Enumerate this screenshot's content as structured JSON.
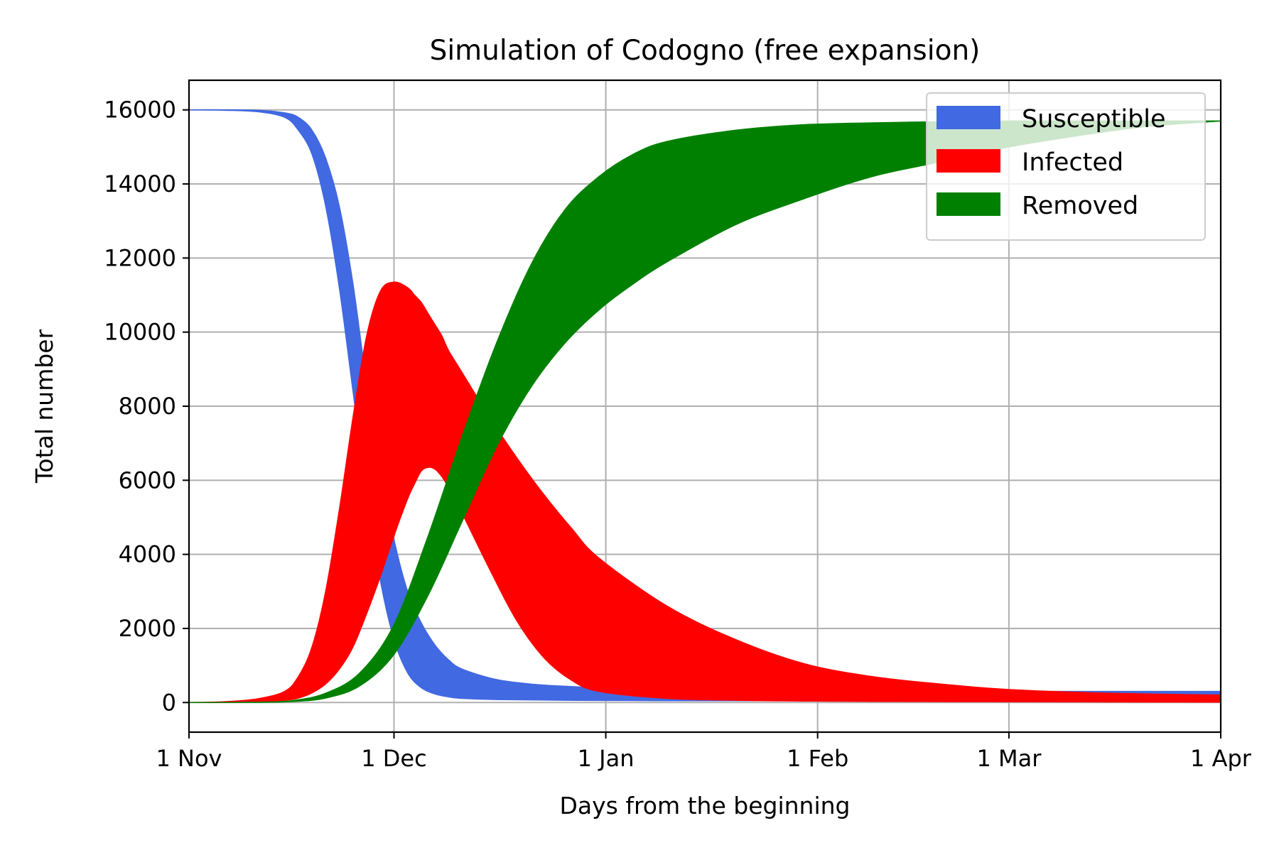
{
  "chart_data": {
    "type": "area",
    "title": "Simulation of Codogno (free expansion)",
    "xlabel": "Days from the beginning",
    "ylabel": "Total number",
    "x_ticks": [
      {
        "day": 0,
        "label": "1 Nov"
      },
      {
        "day": 30,
        "label": "1 Dec"
      },
      {
        "day": 61,
        "label": "1 Jan"
      },
      {
        "day": 92,
        "label": "1 Feb"
      },
      {
        "day": 120,
        "label": "1 Mar"
      },
      {
        "day": 151,
        "label": "1 Apr"
      }
    ],
    "y_ticks": [
      0,
      2000,
      4000,
      6000,
      8000,
      10000,
      12000,
      14000,
      16000
    ],
    "xlim": [
      0,
      151
    ],
    "ylim": [
      -800,
      16800
    ],
    "grid": true,
    "legend_position": "top-right",
    "series": [
      {
        "name": "Susceptible",
        "color": "#4169e1",
        "x": [
          0,
          5,
          10,
          14,
          16,
          18,
          20,
          22,
          24,
          26,
          28,
          30,
          32,
          34,
          36,
          38,
          40,
          45,
          50,
          55,
          60,
          70,
          80,
          90,
          100,
          120,
          151
        ],
        "upper": [
          16000,
          16000,
          15990,
          15920,
          15800,
          15450,
          14700,
          13400,
          11300,
          8600,
          6300,
          4400,
          3000,
          2150,
          1550,
          1150,
          900,
          620,
          500,
          440,
          400,
          360,
          340,
          320,
          310,
          300,
          300
        ],
        "lower": [
          16000,
          15990,
          15950,
          15800,
          15450,
          14800,
          13400,
          11200,
          8400,
          5600,
          3300,
          1700,
          800,
          400,
          230,
          150,
          110,
          80,
          70,
          60,
          55,
          50,
          50,
          50,
          50,
          50,
          50
        ]
      },
      {
        "name": "Infected",
        "color": "#ff0000",
        "x": [
          0,
          5,
          10,
          14,
          16,
          18,
          20,
          22,
          24,
          26,
          28,
          30,
          32,
          33,
          34,
          35,
          36,
          37,
          38,
          40,
          44,
          48,
          52,
          56,
          60,
          70,
          80,
          90,
          100,
          110,
          120,
          135,
          151
        ],
        "upper": [
          0,
          20,
          100,
          300,
          700,
          1500,
          3000,
          5200,
          7700,
          9900,
          11100,
          11350,
          11200,
          11000,
          10800,
          10500,
          10200,
          9900,
          9500,
          8900,
          7700,
          6600,
          5600,
          4700,
          3900,
          2600,
          1700,
          1050,
          700,
          500,
          350,
          250,
          200
        ],
        "lower": [
          0,
          5,
          20,
          60,
          120,
          260,
          500,
          900,
          1500,
          2400,
          3400,
          4500,
          5500,
          5900,
          6250,
          6350,
          6300,
          6100,
          5800,
          5100,
          3600,
          2200,
          1200,
          600,
          300,
          110,
          60,
          40,
          30,
          25,
          20,
          15,
          10
        ]
      },
      {
        "name": "Removed",
        "color": "#008000",
        "x": [
          0,
          10,
          15,
          20,
          25,
          30,
          35,
          40,
          45,
          50,
          55,
          60,
          65,
          70,
          80,
          90,
          100,
          110,
          120,
          130,
          140,
          151
        ],
        "upper": [
          0,
          10,
          50,
          250,
          800,
          2100,
          4500,
          7200,
          9700,
          11800,
          13300,
          14200,
          14800,
          15150,
          15450,
          15600,
          15650,
          15680,
          15700,
          15700,
          15700,
          15700
        ],
        "lower": [
          0,
          5,
          25,
          120,
          450,
          1300,
          2900,
          4900,
          6900,
          8500,
          9700,
          10600,
          11300,
          11900,
          12900,
          13600,
          14200,
          14600,
          15000,
          15300,
          15550,
          15700
        ]
      }
    ]
  }
}
